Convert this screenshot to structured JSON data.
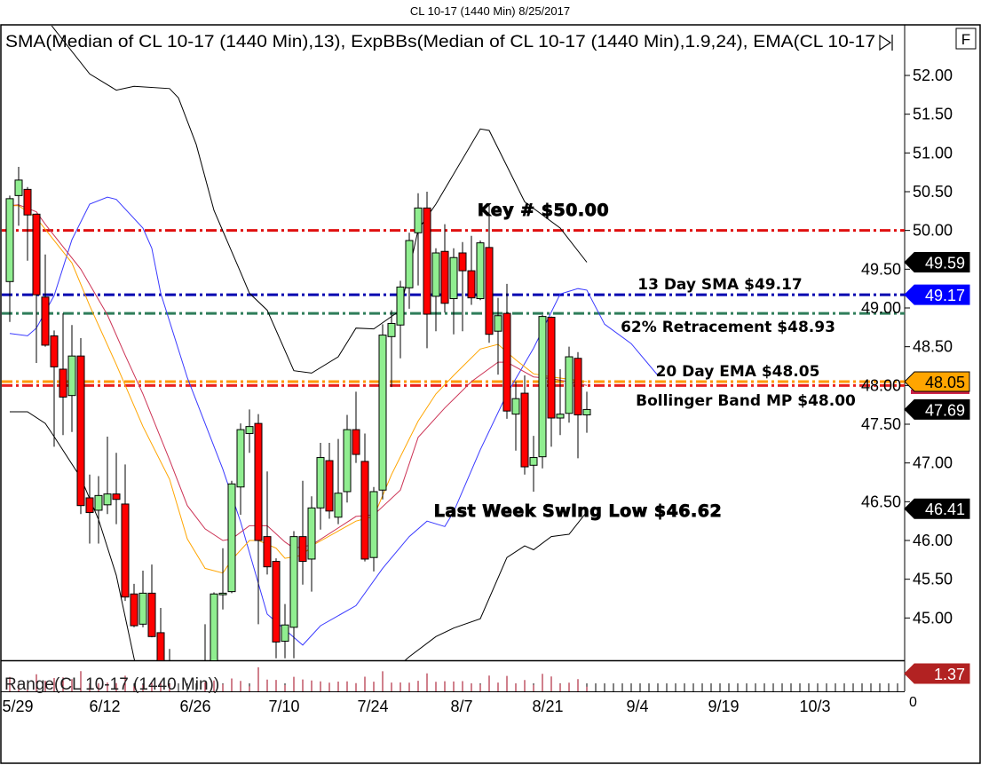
{
  "title": "CL 10-17 (1440 Min)  8/25/2017",
  "study_header": "SMA(Median of CL 10-17 (1440 Min),13), ExpBBs(Median of CL 10-17 (1440 Min),1.9,24), EMA(CL 10-17",
  "f_button": "F",
  "range_pane_label": "Range(CL 10-17 (1440 Min))",
  "range_zero_label": "0",
  "chart_data": {
    "type": "candlestick",
    "title": "CL 10-17 (1440 Min)  8/25/2017",
    "x_ticks": [
      "5/29",
      "6/12",
      "6/26",
      "7/10",
      "7/24",
      "8/7",
      "8/21",
      "9/4",
      "9/19",
      "10/3"
    ],
    "y_ticks": [
      "52.00",
      "51.50",
      "51.00",
      "50.50",
      "50.00",
      "49.50",
      "49.00",
      "48.50",
      "48.00",
      "47.50",
      "47.00",
      "46.50",
      "46.00",
      "45.50",
      "45.00"
    ],
    "ylim": [
      44.45,
      52.65
    ],
    "grid": false,
    "candles": [
      [
        "5/26",
        49.34,
        50.45,
        48.82,
        50.41
      ],
      [
        "5/29",
        50.45,
        50.82,
        50.06,
        50.65
      ],
      [
        "5/30",
        50.53,
        50.56,
        49.61,
        50.2
      ],
      [
        "5/31",
        50.21,
        50.22,
        48.29,
        49.17
      ],
      [
        "6/1",
        49.14,
        49.69,
        48.5,
        48.52
      ],
      [
        "6/2",
        48.64,
        48.71,
        47.21,
        48.24
      ],
      [
        "6/5",
        48.21,
        48.93,
        47.36,
        47.85
      ],
      [
        "6/6",
        47.87,
        48.78,
        47.4,
        48.38
      ],
      [
        "6/7",
        48.38,
        48.61,
        46.34,
        46.45
      ],
      [
        "6/8",
        46.55,
        46.85,
        45.96,
        46.36
      ],
      [
        "6/9",
        46.39,
        46.83,
        45.96,
        46.58
      ],
      [
        "6/12",
        46.46,
        47.34,
        46.34,
        46.6
      ],
      [
        "6/13",
        46.6,
        47.13,
        46.21,
        46.53
      ],
      [
        "6/14",
        46.47,
        46.98,
        45.22,
        45.27
      ],
      [
        "6/15",
        45.31,
        45.44,
        44.88,
        44.9
      ],
      [
        "6/16",
        44.92,
        45.61,
        44.88,
        45.32
      ],
      [
        "6/19",
        45.32,
        45.69,
        44.75,
        44.76
      ],
      [
        "6/20",
        44.81,
        45.13,
        44.0,
        44.3
      ],
      [
        "6/21",
        44.35,
        44.6,
        43.8,
        44.0
      ],
      [
        "6/27",
        44.1,
        44.92,
        43.9,
        44.35
      ],
      [
        "6/28",
        44.3,
        45.33,
        44.1,
        45.31
      ],
      [
        "6/29",
        45.3,
        45.9,
        45.11,
        45.32
      ],
      [
        "6/30",
        45.34,
        46.77,
        45.32,
        46.73
      ],
      [
        "7/3",
        46.69,
        47.51,
        46.33,
        47.43
      ],
      [
        "7/4",
        47.38,
        47.69,
        47.13,
        47.47
      ],
      [
        "7/5",
        47.51,
        47.63,
        44.92,
        46.0
      ],
      [
        "7/6",
        46.05,
        46.89,
        45.56,
        45.66
      ],
      [
        "7/7",
        45.73,
        45.77,
        44.48,
        44.69
      ],
      [
        "7/10",
        44.7,
        45.18,
        44.48,
        44.91
      ],
      [
        "7/11",
        44.88,
        46.12,
        44.48,
        46.05
      ],
      [
        "7/12",
        46.05,
        46.77,
        45.43,
        45.73
      ],
      [
        "7/13",
        45.76,
        46.57,
        45.34,
        46.42
      ],
      [
        "7/14",
        46.42,
        47.26,
        46.14,
        47.07
      ],
      [
        "7/17",
        47.03,
        47.26,
        46.28,
        46.38
      ],
      [
        "7/18",
        46.3,
        47.31,
        46.21,
        46.61
      ],
      [
        "7/19",
        46.63,
        47.62,
        46.49,
        47.43
      ],
      [
        "7/20",
        47.43,
        47.92,
        47.0,
        47.11
      ],
      [
        "7/21",
        47.02,
        47.38,
        45.73,
        45.76
      ],
      [
        "7/24",
        45.78,
        46.69,
        45.6,
        46.63
      ],
      [
        "7/25",
        46.65,
        48.79,
        46.53,
        48.65
      ],
      [
        "7/26",
        48.63,
        48.97,
        47.98,
        48.8
      ],
      [
        "7/27",
        48.78,
        49.35,
        48.35,
        49.27
      ],
      [
        "7/28",
        49.26,
        49.97,
        48.99,
        49.87
      ],
      [
        "7/31",
        49.97,
        50.48,
        49.29,
        50.29
      ],
      [
        "8/1",
        50.29,
        50.5,
        48.48,
        48.92
      ],
      [
        "8/2",
        49.15,
        49.77,
        48.7,
        49.71
      ],
      [
        "8/3",
        49.73,
        50.08,
        48.94,
        49.06
      ],
      [
        "8/4",
        49.12,
        49.77,
        48.66,
        49.65
      ],
      [
        "8/7",
        49.71,
        49.85,
        48.7,
        49.48
      ],
      [
        "8/8",
        49.48,
        49.93,
        49.04,
        49.13
      ],
      [
        "8/9",
        49.12,
        49.87,
        49.1,
        49.84
      ],
      [
        "8/10",
        49.78,
        50.33,
        48.55,
        48.66
      ],
      [
        "8/11",
        48.7,
        49.13,
        48.14,
        48.9
      ],
      [
        "8/14",
        48.93,
        49.31,
        47.57,
        47.67
      ],
      [
        "8/15",
        47.63,
        48.05,
        47.16,
        47.83
      ],
      [
        "8/16",
        47.9,
        48.13,
        46.85,
        46.95
      ],
      [
        "8/17",
        46.97,
        47.35,
        46.63,
        47.07
      ],
      [
        "8/18",
        47.08,
        48.91,
        46.93,
        48.89
      ],
      [
        "8/21",
        48.88,
        48.89,
        47.21,
        47.58
      ],
      [
        "8/22",
        47.58,
        48.21,
        47.36,
        47.63
      ],
      [
        "8/23",
        47.64,
        48.5,
        47.52,
        48.37
      ],
      [
        "8/24",
        48.35,
        48.43,
        47.06,
        47.62
      ],
      [
        "8/25",
        47.62,
        47.92,
        47.39,
        47.69
      ]
    ],
    "candle_colors": {
      "up": "#90ee90",
      "down": "#ff0000",
      "outline": "#000000"
    },
    "lines": [
      {
        "name": "ExpBBs upper",
        "color": "#000000",
        "segments": [
          [
            [
              "6/1",
              52.75
            ],
            [
              "6/2",
              52.6
            ],
            [
              "6/8",
              52.02
            ],
            [
              "6/13",
              51.81
            ],
            [
              "6/15",
              51.86
            ],
            [
              "6/21",
              51.83
            ],
            [
              "6/22",
              51.71
            ],
            [
              "6/26",
              51.11
            ],
            [
              "6/28",
              50.26
            ],
            [
              "7/3",
              49.46
            ],
            [
              "7/4",
              49.19
            ],
            [
              "7/6",
              48.97
            ],
            [
              "7/11",
              48.19
            ],
            [
              "7/13",
              48.16
            ],
            [
              "7/18",
              48.37
            ],
            [
              "7/20",
              48.74
            ],
            [
              "7/24",
              48.73
            ],
            [
              "7/27",
              48.97
            ],
            [
              "7/31",
              50.01
            ],
            [
              "8/2",
              50.34
            ],
            [
              "8/9",
              51.31
            ],
            [
              "8/10",
              51.29
            ],
            [
              "8/16",
              50.37
            ],
            [
              "8/22",
              50.03
            ],
            [
              "8/25",
              49.59
            ]
          ]
        ]
      },
      {
        "name": "ExpBBs lower",
        "color": "#000000",
        "segments": [
          [
            [
              "5/26",
              47.66
            ],
            [
              "5/30",
              47.66
            ],
            [
              "6/1",
              47.51
            ],
            [
              "6/2",
              47.34
            ],
            [
              "6/7",
              46.81
            ],
            [
              "6/9",
              46.27
            ],
            [
              "6/13",
              45.55
            ],
            [
              "6/15",
              44.48
            ],
            [
              "6/19",
              43.6
            ]
          ],
          [
            [
              "7/25",
              44.2
            ],
            [
              "7/28",
              44.5
            ],
            [
              "8/2",
              44.76
            ],
            [
              "8/4",
              44.87
            ],
            [
              "8/9",
              44.99
            ],
            [
              "8/14",
              45.78
            ],
            [
              "8/16",
              45.93
            ],
            [
              "8/17",
              45.88
            ],
            [
              "8/21",
              46.05
            ],
            [
              "8/23",
              46.08
            ],
            [
              "8/25",
              46.37
            ]
          ]
        ]
      },
      {
        "name": "SMA 13",
        "color": "#3a3aff",
        "segments": [
          [
            [
              "5/26",
              48.67
            ],
            [
              "5/30",
              48.64
            ],
            [
              "5/31",
              48.74
            ],
            [
              "6/2",
              49.16
            ],
            [
              "6/6",
              49.88
            ],
            [
              "6/8",
              50.34
            ],
            [
              "6/12",
              50.43
            ],
            [
              "6/13",
              50.4
            ],
            [
              "6/16",
              50.03
            ],
            [
              "6/19",
              49.77
            ],
            [
              "6/20",
              49.19
            ],
            [
              "6/23",
              48.1
            ],
            [
              "6/29",
              46.92
            ],
            [
              "7/3",
              46.24
            ],
            [
              "7/6",
              45.05
            ],
            [
              "7/12",
              44.65
            ],
            [
              "7/14",
              44.9
            ],
            [
              "7/20",
              45.16
            ],
            [
              "7/25",
              45.64
            ],
            [
              "7/28",
              46.05
            ],
            [
              "8/1",
              46.25
            ],
            [
              "8/3",
              46.18
            ],
            [
              "8/4",
              46.37
            ],
            [
              "8/9",
              47.17
            ],
            [
              "8/14",
              47.89
            ],
            [
              "8/17",
              48.48
            ],
            [
              "8/22",
              49.18
            ],
            [
              "8/24",
              49.25
            ],
            [
              "8/25",
              49.23
            ],
            [
              "8/29",
              48.79
            ],
            [
              "9/1",
              48.54
            ],
            [
              "9/6",
              48.13
            ]
          ]
        ]
      },
      {
        "name": "ExpBBs mid",
        "color": "#cc3355",
        "segments": [
          [
            [
              "5/26",
              50.32
            ],
            [
              "5/29",
              50.33
            ],
            [
              "5/31",
              50.24
            ],
            [
              "6/1",
              50.08
            ],
            [
              "6/7",
              49.5
            ],
            [
              "6/12",
              48.91
            ],
            [
              "6/14",
              48.39
            ],
            [
              "6/16",
              47.89
            ],
            [
              "6/21",
              47.04
            ],
            [
              "6/23",
              46.45
            ],
            [
              "6/27",
              46.15
            ],
            [
              "6/29",
              46.0
            ],
            [
              "6/30",
              46.02
            ],
            [
              "7/4",
              46.19
            ],
            [
              "7/6",
              46.19
            ],
            [
              "7/10",
              45.98
            ],
            [
              "7/11",
              45.9
            ],
            [
              "7/13",
              45.94
            ],
            [
              "7/20",
              46.31
            ],
            [
              "7/24",
              46.33
            ],
            [
              "7/27",
              46.65
            ],
            [
              "7/31",
              47.33
            ],
            [
              "8/3",
              47.71
            ],
            [
              "8/8",
              48.05
            ],
            [
              "8/11",
              48.3
            ],
            [
              "8/14",
              48.3
            ],
            [
              "8/17",
              48.11
            ],
            [
              "8/21",
              48.09
            ],
            [
              "8/25",
              48.0
            ]
          ]
        ]
      },
      {
        "name": "EMA 20",
        "color": "#ffa500",
        "segments": [
          [
            [
              "5/26",
              50.32
            ],
            [
              "5/29",
              50.32
            ],
            [
              "5/31",
              50.16
            ],
            [
              "6/6",
              49.58
            ],
            [
              "6/8",
              49.03
            ],
            [
              "6/13",
              48.27
            ],
            [
              "6/16",
              47.47
            ],
            [
              "6/21",
              46.79
            ],
            [
              "6/23",
              46.02
            ],
            [
              "6/27",
              45.64
            ],
            [
              "6/29",
              45.58
            ],
            [
              "6/30",
              45.75
            ],
            [
              "7/4",
              46.0
            ],
            [
              "7/5",
              46.0
            ],
            [
              "7/7",
              45.9
            ],
            [
              "7/10",
              45.77
            ],
            [
              "7/12",
              45.81
            ],
            [
              "7/13",
              45.93
            ],
            [
              "7/20",
              46.25
            ],
            [
              "7/24",
              46.31
            ],
            [
              "7/26",
              46.85
            ],
            [
              "7/31",
              47.54
            ],
            [
              "8/2",
              47.89
            ],
            [
              "8/4",
              48.13
            ],
            [
              "8/9",
              48.47
            ],
            [
              "8/11",
              48.53
            ],
            [
              "8/15",
              48.33
            ],
            [
              "8/17",
              48.15
            ],
            [
              "8/21",
              48.11
            ],
            [
              "8/25",
              48.05
            ]
          ]
        ]
      }
    ],
    "horizontal_lines": [
      {
        "price": 50.0,
        "color": "#e01010",
        "label": "Key # $50.00",
        "heavy": true
      },
      {
        "price": 49.17,
        "color": "#0000b0",
        "label": "13 Day SMA $49.17"
      },
      {
        "price": 48.93,
        "color": "#2e7d5a",
        "label": "62% Retracement $48.93"
      },
      {
        "price": 48.05,
        "color": "#ff9900",
        "label": "20 Day EMA $48.05"
      },
      {
        "price": 48.0,
        "color": "#e82020",
        "label": "Bollinger Band MP $48.00"
      }
    ],
    "annotations": [
      {
        "text": "Last Week Swing Low $46.62",
        "price": 46.62,
        "heavy": true
      }
    ],
    "price_flags": [
      {
        "value": "49.59",
        "price": 49.59,
        "bg": "#000000",
        "fg": "#ffffff"
      },
      {
        "value": "49.17",
        "price": 49.17,
        "bg": "#0000ff",
        "fg": "#ffffff"
      },
      {
        "value": "48.05",
        "price": 48.05,
        "bg": "#ffa500",
        "fg": "#000000"
      },
      {
        "value": "47.69",
        "price": 47.69,
        "bg": "#000000",
        "fg": "#ffffff"
      },
      {
        "value": "46.41",
        "price": 46.41,
        "bg": "#000000",
        "fg": "#ffffff"
      }
    ],
    "range_pane": {
      "type": "bar",
      "color": "#a0001a",
      "flag": {
        "value": "1.37",
        "bg": "#b22222",
        "fg": "#ffffff"
      }
    }
  }
}
